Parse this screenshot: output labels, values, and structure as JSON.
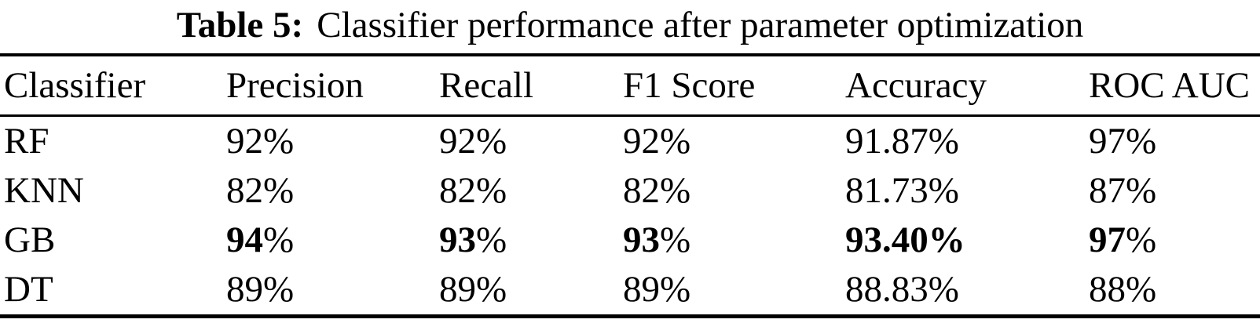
{
  "caption": {
    "label": "Table 5:",
    "text": "Classifier performance after parameter optimization"
  },
  "colors": {
    "text": "#000000",
    "background": "#ffffff",
    "rule": "#000000"
  },
  "table": {
    "headers": [
      "Classifier",
      "Precision",
      "Recall",
      "F1 Score",
      "Accuracy",
      "ROC AUC"
    ],
    "rows": [
      {
        "classifier": "RF",
        "cells": [
          {
            "num": "92",
            "pct": "%",
            "num_bold": false,
            "pct_bold": false
          },
          {
            "num": "92",
            "pct": "%",
            "num_bold": false,
            "pct_bold": false
          },
          {
            "num": "92",
            "pct": "%",
            "num_bold": false,
            "pct_bold": false
          },
          {
            "num": "91.87",
            "pct": "%",
            "num_bold": false,
            "pct_bold": false
          },
          {
            "num": "97",
            "pct": "%",
            "num_bold": false,
            "pct_bold": false
          }
        ]
      },
      {
        "classifier": "KNN",
        "cells": [
          {
            "num": "82",
            "pct": "%",
            "num_bold": false,
            "pct_bold": false
          },
          {
            "num": "82",
            "pct": "%",
            "num_bold": false,
            "pct_bold": false
          },
          {
            "num": "82",
            "pct": "%",
            "num_bold": false,
            "pct_bold": false
          },
          {
            "num": "81.73",
            "pct": "%",
            "num_bold": false,
            "pct_bold": false
          },
          {
            "num": "87",
            "pct": "%",
            "num_bold": false,
            "pct_bold": false
          }
        ]
      },
      {
        "classifier": "GB",
        "cells": [
          {
            "num": "94",
            "pct": "%",
            "num_bold": true,
            "pct_bold": false
          },
          {
            "num": "93",
            "pct": "%",
            "num_bold": true,
            "pct_bold": false
          },
          {
            "num": "93",
            "pct": "%",
            "num_bold": true,
            "pct_bold": false
          },
          {
            "num": "93.40",
            "pct": "%",
            "num_bold": true,
            "pct_bold": true
          },
          {
            "num": "97",
            "pct": "%",
            "num_bold": true,
            "pct_bold": false
          }
        ]
      },
      {
        "classifier": "DT",
        "cells": [
          {
            "num": "89",
            "pct": "%",
            "num_bold": false,
            "pct_bold": false
          },
          {
            "num": "89",
            "pct": "%",
            "num_bold": false,
            "pct_bold": false
          },
          {
            "num": "89",
            "pct": "%",
            "num_bold": false,
            "pct_bold": false
          },
          {
            "num": "88.83",
            "pct": "%",
            "num_bold": false,
            "pct_bold": false
          },
          {
            "num": "88",
            "pct": "%",
            "num_bold": false,
            "pct_bold": false
          }
        ]
      }
    ]
  }
}
